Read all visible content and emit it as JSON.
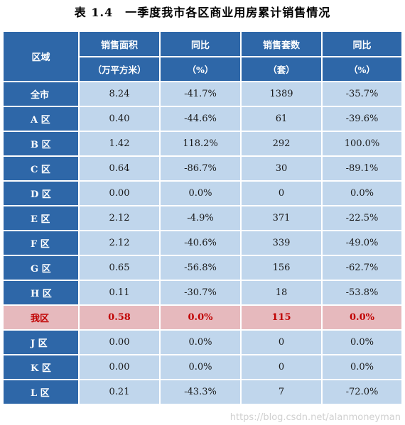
{
  "title": "表 1.4　一季度我市各区商业用房累计销售情况",
  "header": {
    "region": "区域",
    "area": "销售面积",
    "area_unit": "（万平方米）",
    "area_yoy": "同比",
    "area_yoy_unit": "（%）",
    "units": "销售套数",
    "units_unit": "（套）",
    "units_yoy": "同比",
    "units_yoy_unit": "（%）"
  },
  "rows": [
    {
      "region": "全市",
      "area": "8.24",
      "area_yoy": "-41.7%",
      "units": "1389",
      "units_yoy": "-35.7%"
    },
    {
      "region": "A 区",
      "area": "0.40",
      "area_yoy": "-44.6%",
      "units": "61",
      "units_yoy": "-39.6%"
    },
    {
      "region": "B 区",
      "area": "1.42",
      "area_yoy": "118.2%",
      "units": "292",
      "units_yoy": "100.0%"
    },
    {
      "region": "C 区",
      "area": "0.64",
      "area_yoy": "-86.7%",
      "units": "30",
      "units_yoy": "-89.1%"
    },
    {
      "region": "D 区",
      "area": "0.00",
      "area_yoy": "0.0%",
      "units": "0",
      "units_yoy": "0.0%"
    },
    {
      "region": "E 区",
      "area": "2.12",
      "area_yoy": "-4.9%",
      "units": "371",
      "units_yoy": "-22.5%"
    },
    {
      "region": "F 区",
      "area": "2.12",
      "area_yoy": "-40.6%",
      "units": "339",
      "units_yoy": "-49.0%"
    },
    {
      "region": "G 区",
      "area": "0.65",
      "area_yoy": "-56.8%",
      "units": "156",
      "units_yoy": "-62.7%"
    },
    {
      "region": "H 区",
      "area": "0.11",
      "area_yoy": "-30.7%",
      "units": "18",
      "units_yoy": "-53.8%"
    },
    {
      "region": "我区",
      "area": "0.58",
      "area_yoy": "0.0%",
      "units": "115",
      "units_yoy": "0.0%"
    },
    {
      "region": "J 区",
      "area": "0.00",
      "area_yoy": "0.0%",
      "units": "0",
      "units_yoy": "0.0%"
    },
    {
      "region": "K 区",
      "area": "0.00",
      "area_yoy": "0.0%",
      "units": "0",
      "units_yoy": "0.0%"
    },
    {
      "region": "L 区",
      "area": "0.21",
      "area_yoy": "-43.3%",
      "units": "7",
      "units_yoy": "-72.0%"
    }
  ],
  "highlight_row": "我区",
  "colors": {
    "header_bg": "#2e67a8",
    "cell_bg": "#c0d6ec",
    "highlight_bg": "#e6b9bd",
    "highlight_text": "#c00000"
  },
  "watermark": "https://blog.csdn.net/alanmoneyman"
}
